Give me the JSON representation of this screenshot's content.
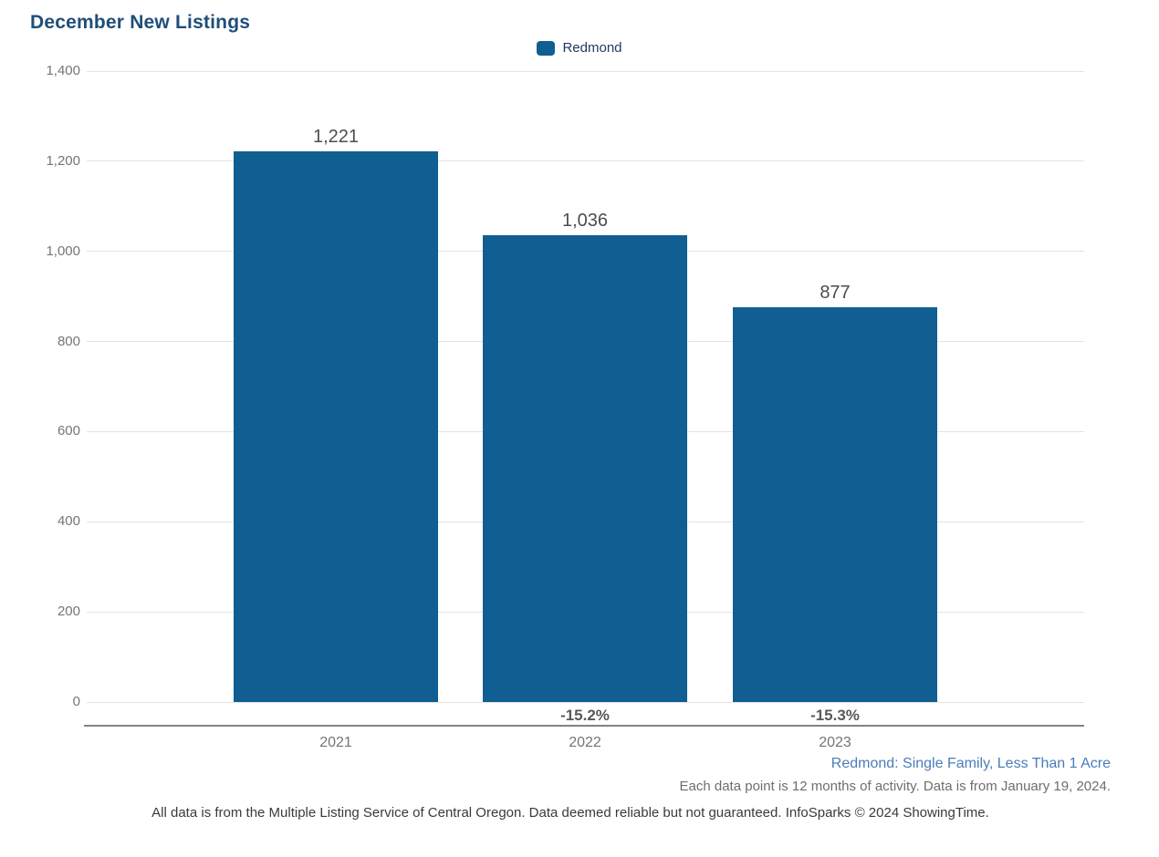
{
  "title": "December New Listings",
  "legend": {
    "label": "Redmond",
    "swatch_color": "#115E93"
  },
  "chart_data": {
    "type": "bar",
    "title": "December New Listings",
    "categories": [
      "2021",
      "2022",
      "2023"
    ],
    "series": [
      {
        "name": "Redmond",
        "values": [
          1221,
          1036,
          877
        ]
      }
    ],
    "value_labels": [
      "1,221",
      "1,036",
      "877"
    ],
    "pct_change_labels": [
      "",
      "-15.2%",
      "-15.3%"
    ],
    "y_ticks": [
      "1,400",
      "1,200",
      "1,000",
      "800",
      "600",
      "400",
      "200",
      "0"
    ],
    "ylim": [
      0,
      1400
    ],
    "grid": true,
    "legend_position": "top-center",
    "bar_color": "#115E93"
  },
  "footnotes": {
    "segment": "Redmond: Single Family, Less Than 1 Acre",
    "data_point_note": "Each data point is 12 months of activity. Data is from January 19, 2024.",
    "disclaimer": "All data is from the Multiple Listing Service of Central Oregon. Data deemed reliable but not guaranteed. InfoSparks © 2024 ShowingTime."
  },
  "colors": {
    "title_text": "#1F4E79",
    "bar": "#115E93",
    "tick_text": "#757575",
    "value_text": "#4D4D4D",
    "pct_text": "#58595B",
    "segment_text": "#4B7DB8",
    "gridline": "#E3E3E3",
    "axis_line": "#828282"
  }
}
